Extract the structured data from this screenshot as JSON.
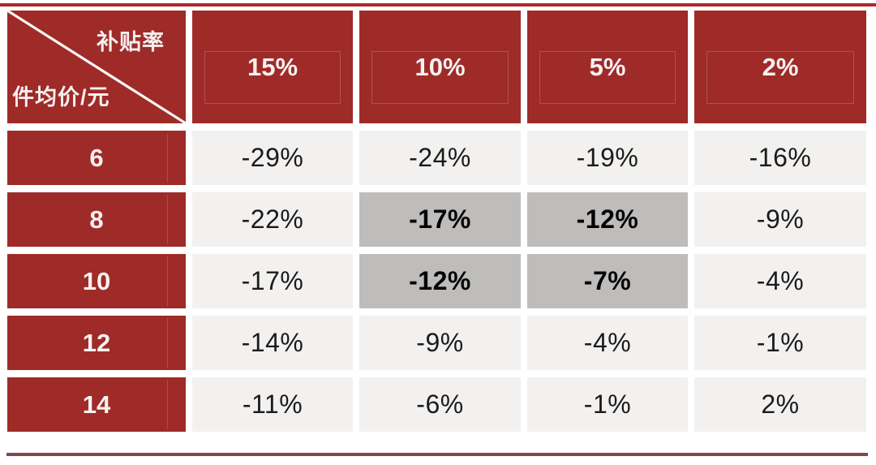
{
  "colors": {
    "red": "#9E2B28",
    "cell_bg": "#F2F1F0",
    "highlight_bg": "#BEBDBC",
    "top_rule": "#AC2B29",
    "bottom_rule": "#83474B",
    "value_text": "#1B1B1B"
  },
  "table": {
    "corner": {
      "top_label": "补贴率",
      "bottom_label": "件均价/元"
    },
    "columns": [
      "15%",
      "10%",
      "5%",
      "2%"
    ],
    "rows": [
      {
        "label": "6",
        "values": [
          "-29%",
          "-24%",
          "-19%",
          "-16%"
        ],
        "highlight": [
          false,
          false,
          false,
          false
        ]
      },
      {
        "label": "8",
        "values": [
          "-22%",
          "-17%",
          "-12%",
          "-9%"
        ],
        "highlight": [
          false,
          true,
          true,
          false
        ]
      },
      {
        "label": "10",
        "values": [
          "-17%",
          "-12%",
          "-7%",
          "-4%"
        ],
        "highlight": [
          false,
          true,
          true,
          false
        ]
      },
      {
        "label": "12",
        "values": [
          "-14%",
          "-9%",
          "-4%",
          "-1%"
        ],
        "highlight": [
          false,
          false,
          false,
          false
        ]
      },
      {
        "label": "14",
        "values": [
          "-11%",
          "-6%",
          "-1%",
          "2%"
        ],
        "highlight": [
          false,
          false,
          false,
          false
        ]
      }
    ]
  },
  "chart_data": {
    "type": "table",
    "title": "",
    "corner_top_header": "补贴率",
    "corner_bottom_header": "件均价/元",
    "columns": [
      "15%",
      "10%",
      "5%",
      "2%"
    ],
    "row_labels": [
      "6",
      "8",
      "10",
      "12",
      "14"
    ],
    "values_pct": [
      [
        -29,
        -24,
        -19,
        -16
      ],
      [
        -22,
        -17,
        -12,
        -9
      ],
      [
        -17,
        -12,
        -7,
        -4
      ],
      [
        -14,
        -9,
        -4,
        -1
      ],
      [
        -11,
        -6,
        -1,
        2
      ]
    ],
    "highlighted_cells_row_col": [
      [
        1,
        1
      ],
      [
        1,
        2
      ],
      [
        2,
        1
      ],
      [
        2,
        2
      ]
    ]
  }
}
